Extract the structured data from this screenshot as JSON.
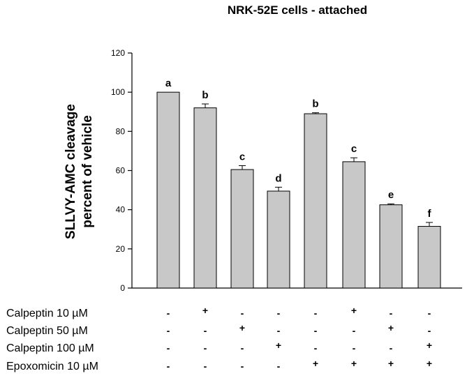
{
  "chart_data": {
    "type": "bar",
    "title": "NRK-52E cells - attached",
    "ylabel": [
      "SLLVY-AMC cleavage",
      "percent of vehicle"
    ],
    "xlabel": "",
    "ylim": [
      0,
      120
    ],
    "yticks": [
      0,
      20,
      40,
      60,
      80,
      100,
      120
    ],
    "grid": false,
    "bar_color": "#c8c8c8",
    "values": [
      100,
      92,
      60.5,
      49.5,
      89,
      64.5,
      42.5,
      31.5
    ],
    "errors": [
      0,
      2,
      2,
      2,
      0.5,
      2,
      0.5,
      2
    ],
    "significance_letters": [
      "a",
      "b",
      "c",
      "d",
      "b",
      "c",
      "e",
      "f"
    ],
    "treatments": [
      {
        "label": "Calpeptin 10 µM",
        "signs": [
          "-",
          "+",
          "-",
          "-",
          "-",
          "+",
          "-",
          "-"
        ]
      },
      {
        "label": "Calpeptin 50 µM",
        "signs": [
          "-",
          "-",
          "+",
          "-",
          "-",
          "-",
          "+",
          "-"
        ]
      },
      {
        "label": "Calpeptin 100 µM",
        "signs": [
          "-",
          "-",
          "-",
          "+",
          "-",
          "-",
          "-",
          "+"
        ]
      },
      {
        "label": "Epoxomicin 10 µM",
        "signs": [
          "-",
          "-",
          "-",
          "-",
          "+",
          "+",
          "+",
          "+"
        ]
      }
    ]
  }
}
